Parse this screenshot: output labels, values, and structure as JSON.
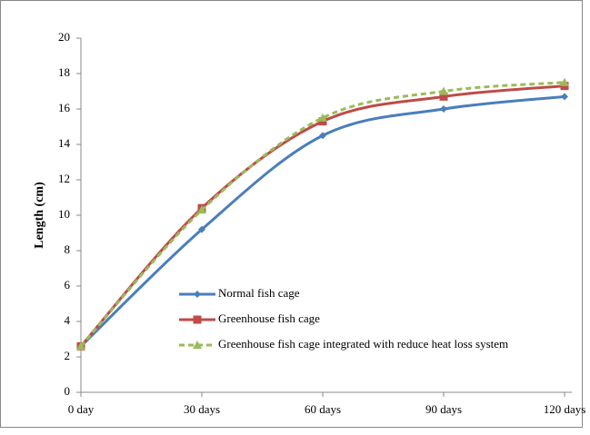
{
  "chart_data": {
    "type": "line",
    "y_label": "Length (cm)",
    "categories": [
      "0 day",
      "30 days",
      "60 days",
      "90 days",
      "120 days"
    ],
    "series": [
      {
        "name": "Normal fish cage",
        "color": "#4a7ebb",
        "marker": "diamond",
        "line_style": "solid",
        "values": [
          2.6,
          9.2,
          14.5,
          16.0,
          16.7
        ]
      },
      {
        "name": "Greenhouse fish cage",
        "color": "#be4b48",
        "marker": "square",
        "line_style": "solid",
        "values": [
          2.6,
          10.4,
          15.3,
          16.7,
          17.3
        ]
      },
      {
        "name": "Greenhouse fish cage  integrated with reduce heat loss system",
        "color": "#9bbb59",
        "marker": "triangle",
        "line_style": "dashed",
        "values": [
          2.6,
          10.3,
          15.5,
          17.0,
          17.5
        ]
      }
    ],
    "ylim": [
      0,
      20
    ],
    "yticks": [
      0,
      2,
      4,
      6,
      8,
      10,
      12,
      14,
      16,
      18,
      20
    ],
    "smooth": true
  }
}
